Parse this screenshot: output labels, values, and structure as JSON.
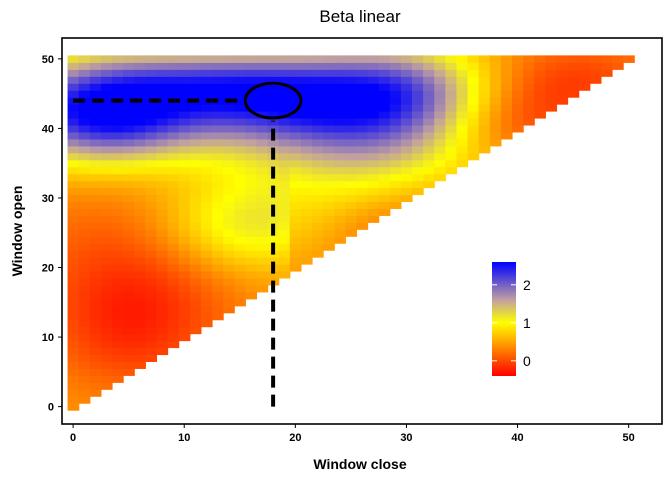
{
  "chart_data": {
    "type": "heatmap",
    "title": "Beta linear",
    "xlabel": "Window close",
    "ylabel": "Window open",
    "xlim": [
      -1,
      53
    ],
    "ylim": [
      -2.5,
      53
    ],
    "x_ticks": [
      0,
      10,
      20,
      30,
      40,
      50
    ],
    "y_ticks": [
      0,
      10,
      20,
      30,
      40,
      50
    ],
    "cells": {
      "x_range": [
        0,
        50
      ],
      "y_range": [
        0,
        50
      ],
      "step": 1,
      "rule": "open <= close rendered as upper-left triangle (open >= close)"
    },
    "color_scale": {
      "range": [
        -0.4,
        2.6
      ],
      "stops": [
        {
          "value": -0.4,
          "color": "#ff0000"
        },
        {
          "value": 0.5,
          "color": "#ffa500"
        },
        {
          "value": 1.0,
          "color": "#ffff00"
        },
        {
          "value": 1.6,
          "color": "#c0a0a0"
        },
        {
          "value": 2.6,
          "color": "#0000ff"
        }
      ],
      "legend_ticks": [
        0,
        1,
        2
      ],
      "legend_placement": "bottom-right inside plot"
    },
    "annotation": {
      "ellipse_center": [
        18,
        44
      ],
      "ellipse_radii": [
        2.5,
        2.5
      ],
      "dashed_horizontal": {
        "from": [
          0,
          44
        ],
        "to": [
          18,
          44
        ]
      },
      "dashed_vertical": {
        "from": [
          18,
          0
        ],
        "to": [
          18,
          44
        ]
      }
    }
  }
}
